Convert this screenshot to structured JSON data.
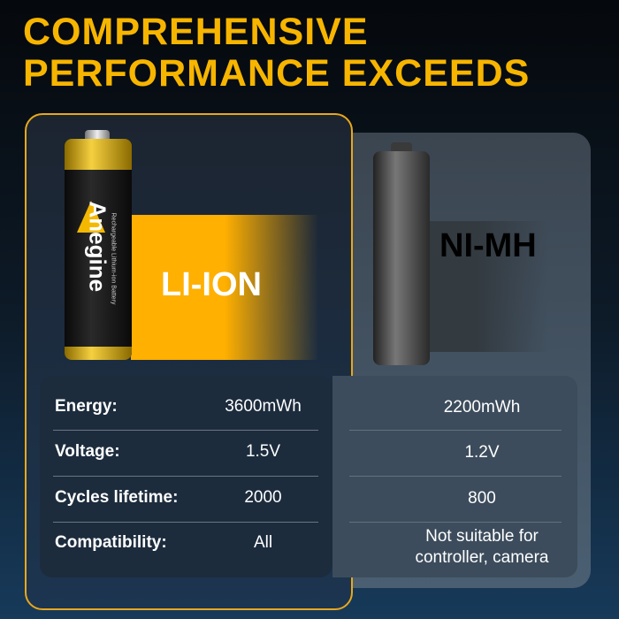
{
  "title": {
    "line1": "COMPREHENSIVE",
    "line2": "PERFORMANCE EXCEEDS"
  },
  "left": {
    "label": "LI-ION",
    "battery_brand": "Anegine",
    "battery_text": "Rechargeable Lithium-ion Battery"
  },
  "right": {
    "label": "NI-MH"
  },
  "accent": "#f7b500",
  "rows": [
    {
      "label": "Energy:",
      "liion": "3600mWh",
      "nimh": "2200mWh"
    },
    {
      "label": "Voltage:",
      "liion": "1.5V",
      "nimh": "1.2V"
    },
    {
      "label": "Cycles lifetime:",
      "liion": "2000",
      "nimh": "800"
    },
    {
      "label": "Compatibility:",
      "liion": "All",
      "nimh": "Not suitable for controller, camera"
    }
  ]
}
